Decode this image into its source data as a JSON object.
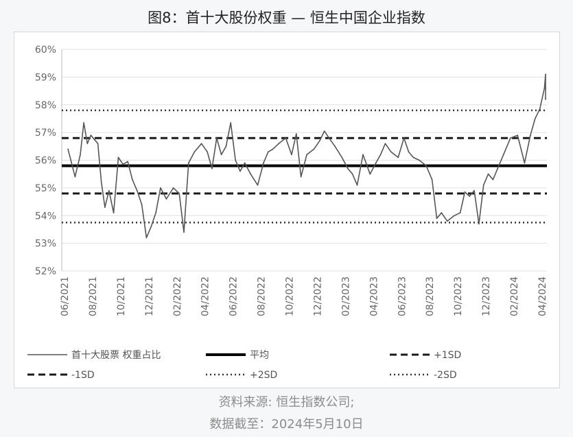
{
  "title": "图8：首十大股份权重 — 恒生中国企业指数",
  "source_line1": "资料来源: 恒生指数公司;",
  "source_line2": "数据截至：2024年5月10日",
  "colors": {
    "series": "#555555",
    "mean": "#000000",
    "sd1": "#1a1a1a",
    "sd2": "#333333",
    "grid": "#e0e0e0",
    "axis_text": "#666666"
  },
  "chart_data": {
    "type": "line",
    "title": "图8：首十大股份权重 — 恒生中国企业指数",
    "ylim": [
      52,
      60
    ],
    "y_ticks": [
      "52%",
      "53%",
      "54%",
      "55%",
      "56%",
      "57%",
      "58%",
      "59%",
      "60%"
    ],
    "x_ticks": [
      "06/2021",
      "08/2021",
      "10/2021",
      "12/2021",
      "02/2022",
      "04/2022",
      "06/2022",
      "08/2022",
      "10/2022",
      "12/2022",
      "02/2023",
      "04/2023",
      "06/2023",
      "08/2023",
      "10/2023",
      "12/2023",
      "02/2024",
      "04/2024"
    ],
    "grid": "horizontal",
    "legend_position": "bottom",
    "legend": [
      {
        "key": "series",
        "label": "首十大股票 权重占比",
        "style": "thin"
      },
      {
        "key": "mean",
        "label": "平均",
        "style": "thick"
      },
      {
        "key": "plus1sd",
        "label": "+1SD",
        "style": "dashed"
      },
      {
        "key": "minus1sd",
        "label": "-1SD",
        "style": "dashed"
      },
      {
        "key": "plus2sd",
        "label": "+2SD",
        "style": "dotted"
      },
      {
        "key": "minus2sd",
        "label": "-2SD",
        "style": "dotted"
      }
    ],
    "reference_lines": {
      "mean": 55.8,
      "plus1sd": 56.8,
      "minus1sd": 54.8,
      "plus2sd": 57.8,
      "minus2sd": 53.75
    },
    "series": [
      {
        "name": "首十大股票 权重占比",
        "x": [
          "06/2021",
          "06/2021",
          "07/2021",
          "07/2021",
          "07/2021",
          "07/2021",
          "08/2021",
          "08/2021",
          "08/2021",
          "08/2021",
          "09/2021",
          "09/2021",
          "09/2021",
          "10/2021",
          "10/2021",
          "10/2021",
          "11/2021",
          "11/2021",
          "11/2021",
          "12/2021",
          "12/2021",
          "12/2021",
          "01/2022",
          "01/2022",
          "02/2022",
          "02/2022",
          "02/2022",
          "03/2022",
          "03/2022",
          "04/2022",
          "04/2022",
          "04/2022",
          "05/2022",
          "05/2022",
          "05/2022",
          "06/2022",
          "06/2022",
          "06/2022",
          "07/2022",
          "07/2022",
          "08/2022",
          "08/2022",
          "08/2022",
          "09/2022",
          "09/2022",
          "10/2022",
          "10/2022",
          "10/2022",
          "11/2022",
          "11/2022",
          "12/2022",
          "12/2022",
          "12/2022",
          "01/2023",
          "01/2023",
          "02/2023",
          "02/2023",
          "02/2023",
          "03/2023",
          "03/2023",
          "04/2023",
          "04/2023",
          "04/2023",
          "05/2023",
          "05/2023",
          "06/2023",
          "06/2023",
          "06/2023",
          "07/2023",
          "07/2023",
          "08/2023",
          "08/2023",
          "08/2023",
          "09/2023",
          "09/2023",
          "10/2023",
          "10/2023",
          "10/2023",
          "11/2023",
          "11/2023",
          "11/2023",
          "12/2023",
          "12/2023",
          "12/2023",
          "01/2024",
          "01/2024",
          "02/2024",
          "02/2024",
          "03/2024",
          "03/2024",
          "03/2024",
          "04/2024",
          "04/2024",
          "04/2024",
          "05/2024"
        ],
        "values": [
          56.4,
          55.4,
          56.2,
          57.35,
          56.6,
          56.9,
          56.75,
          56.6,
          55.2,
          54.3,
          54.9,
          54.1,
          56.1,
          55.85,
          55.95,
          55.3,
          54.9,
          54.4,
          53.2,
          53.6,
          54.1,
          55.0,
          54.6,
          55.0,
          54.8,
          53.4,
          55.9,
          56.3,
          56.6,
          56.3,
          55.7,
          56.8,
          56.2,
          56.5,
          57.35,
          56.0,
          55.6,
          55.9,
          55.5,
          55.1,
          55.9,
          56.3,
          56.4,
          56.6,
          56.8,
          56.2,
          56.95,
          55.4,
          56.2,
          56.4,
          56.7,
          57.05,
          56.8,
          56.5,
          56.1,
          55.7,
          55.5,
          55.1,
          56.2,
          55.5,
          55.9,
          56.2,
          56.6,
          56.3,
          56.1,
          56.8,
          56.3,
          56.1,
          56.0,
          55.8,
          55.3,
          53.9,
          54.1,
          53.8,
          54.0,
          54.1,
          54.85,
          54.7,
          54.9,
          53.7,
          55.1,
          55.5,
          55.3,
          55.7,
          56.2,
          56.8,
          56.9,
          55.9,
          56.9,
          57.5,
          57.85,
          58.6,
          59.1,
          58.2,
          58.6
        ]
      }
    ]
  }
}
